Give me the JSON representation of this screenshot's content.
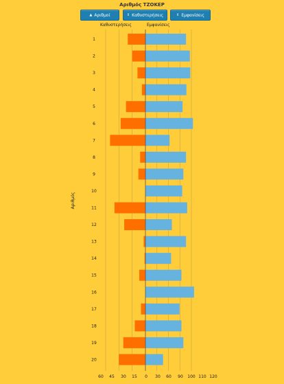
{
  "title": "Αριθμός ΤΖΟΚΕΡ",
  "buttons": [
    {
      "label": "Αριθμοί",
      "icon": "sort-up-icon"
    },
    {
      "label": "Καθυστερήσεις",
      "icon": "sort-icon"
    },
    {
      "label": "Εμφανίσεις",
      "icon": "sort-icon"
    }
  ],
  "colors": {
    "delay": "#FF6F00",
    "appear": "#66B3E0",
    "background": "#FFCC3A",
    "button": "#1F7FB0"
  },
  "chart_data": {
    "type": "bar",
    "ylabel": "Αριθμός",
    "left_label": "Καθυστερήσεις",
    "right_label": "Εμφανίσεις",
    "categories": [
      "1",
      "2",
      "3",
      "4",
      "5",
      "6",
      "7",
      "8",
      "9",
      "10",
      "11",
      "12",
      "13",
      "14",
      "15",
      "16",
      "17",
      "18",
      "19",
      "20"
    ],
    "series": [
      {
        "name": "Καθυστερήσεις",
        "values": [
          20,
          15,
          9,
          4,
          22,
          28,
          40,
          6,
          8,
          0,
          35,
          24,
          2,
          1,
          7,
          0,
          5,
          12,
          25,
          30
        ]
      },
      {
        "name": "Εμφανίσεις",
        "values": [
          106,
          116,
          117,
          107,
          97,
          124,
          63,
          106,
          99,
          96,
          109,
          69,
          106,
          67,
          94,
          127,
          89,
          94,
          99,
          46
        ]
      }
    ],
    "left_ticks": [
      "60",
      "45",
      "30",
      "15"
    ],
    "right_ticks": [
      "0",
      "30",
      "60",
      "90",
      "100",
      "110",
      "120"
    ],
    "xlim_left": [
      0,
      45
    ],
    "xlim_right": [
      0,
      120
    ],
    "grid": true
  }
}
